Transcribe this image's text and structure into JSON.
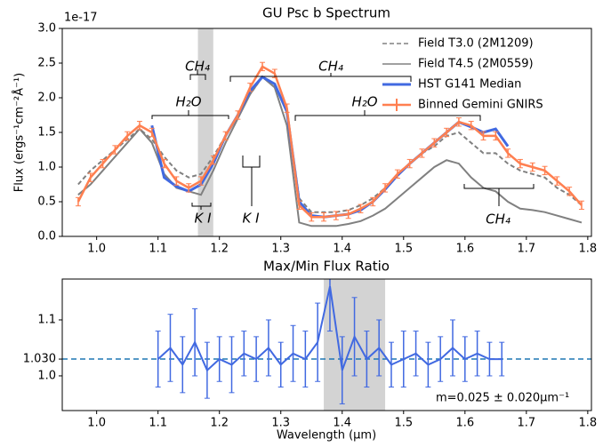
{
  "chart_data": [
    {
      "type": "line",
      "title": "GU Psc b Spectrum",
      "offset_label": "1e-17",
      "ylabel": "Flux (ergs⁻¹cm⁻²Å⁻¹)",
      "xlim": [
        0.944,
        1.806
      ],
      "ylim": [
        0,
        3
      ],
      "xticks": [
        {
          "value": 1,
          "label": "1.0"
        },
        1.1,
        1.2,
        1.3,
        1.4,
        1.5,
        1.6,
        1.7,
        {
          "value": 1.8,
          "label": "1.8"
        }
      ],
      "yticks": [
        {
          "value": 0,
          "label": "0.0"
        },
        0.5,
        {
          "value": 1,
          "label": "1.0"
        },
        1.5,
        {
          "value": 2,
          "label": "2.0"
        },
        2.5,
        {
          "value": 3,
          "label": "3.0"
        }
      ],
      "legend": "upper right",
      "spans": [
        [
          1.165,
          1.19
        ]
      ],
      "annotations": [
        "CH₄",
        "H₂O",
        "CH₄",
        "H₂O",
        "K I",
        "K I",
        "CH₄"
      ],
      "x": [
        0.97,
        0.99,
        1.01,
        1.03,
        1.05,
        1.07,
        1.09,
        1.11,
        1.13,
        1.15,
        1.17,
        1.19,
        1.21,
        1.23,
        1.25,
        1.27,
        1.29,
        1.31,
        1.33,
        1.35,
        1.37,
        1.39,
        1.41,
        1.43,
        1.45,
        1.47,
        1.49,
        1.51,
        1.53,
        1.55,
        1.57,
        1.59,
        1.61,
        1.63,
        1.65,
        1.67,
        1.69,
        1.71,
        1.73,
        1.75,
        1.77,
        1.79
      ],
      "series": [
        {
          "name": "Field T3.0 (2M1209)",
          "color": "#808080",
          "dash": true,
          "values": [
            0.75,
            0.95,
            1.1,
            1.25,
            1.4,
            1.55,
            1.4,
            1.15,
            0.95,
            0.85,
            0.9,
            1.15,
            1.45,
            1.75,
            2.05,
            2.3,
            2.2,
            1.8,
            0.55,
            0.35,
            0.35,
            0.35,
            0.38,
            0.45,
            0.55,
            0.7,
            0.9,
            1.05,
            1.2,
            1.3,
            1.45,
            1.5,
            1.35,
            1.2,
            1.2,
            1.05,
            0.95,
            0.9,
            0.85,
            0.7,
            0.6,
            0.45
          ]
        },
        {
          "name": "Field T4.5 (2M0559)",
          "color": "#808080",
          "values": [
            0.6,
            0.75,
            0.95,
            1.15,
            1.35,
            1.55,
            1.35,
            0.9,
            0.7,
            0.65,
            0.6,
            0.95,
            1.35,
            1.7,
            2.05,
            2.3,
            2.15,
            1.6,
            0.2,
            0.15,
            0.15,
            0.15,
            0.18,
            0.22,
            0.3,
            0.4,
            0.55,
            0.7,
            0.85,
            1.0,
            1.1,
            1.05,
            0.85,
            0.7,
            0.65,
            0.5,
            0.4,
            0.38,
            0.35,
            0.3,
            0.25,
            0.2
          ]
        },
        {
          "name": "HST G141 Median",
          "color": "#4169e1",
          "width": 3,
          "values": [
            null,
            null,
            null,
            null,
            null,
            null,
            1.6,
            0.85,
            0.72,
            0.65,
            0.75,
            1.05,
            1.45,
            1.75,
            2.1,
            2.3,
            2.2,
            1.8,
            0.5,
            0.3,
            0.28,
            0.3,
            0.32,
            0.38,
            0.5,
            0.68,
            0.88,
            1.05,
            1.2,
            1.35,
            1.5,
            1.65,
            1.58,
            1.5,
            1.55,
            1.3,
            null,
            null,
            null,
            null,
            null,
            null
          ]
        },
        {
          "name": "Binned Gemini GNIRS",
          "color": "#ff7f50",
          "width": 2.5,
          "values": [
            0.5,
            0.85,
            1.05,
            1.25,
            1.45,
            1.6,
            1.5,
            1.05,
            0.8,
            0.7,
            0.8,
            1.1,
            1.45,
            1.75,
            2.15,
            2.45,
            2.35,
            1.85,
            0.45,
            0.28,
            0.28,
            0.3,
            0.32,
            0.4,
            0.5,
            0.7,
            0.9,
            1.05,
            1.2,
            1.35,
            1.5,
            1.65,
            1.6,
            1.45,
            1.45,
            1.2,
            1.05,
            1.0,
            0.95,
            0.8,
            0.65,
            0.45
          ],
          "errors": [
            0.06,
            0.06,
            0.06,
            0.06,
            0.06,
            0.06,
            0.06,
            0.06,
            0.06,
            0.06,
            0.06,
            0.06,
            0.06,
            0.06,
            0.06,
            0.06,
            0.06,
            0.06,
            0.06,
            0.06,
            0.06,
            0.06,
            0.06,
            0.06,
            0.06,
            0.06,
            0.06,
            0.06,
            0.06,
            0.06,
            0.06,
            0.06,
            0.06,
            0.06,
            0.06,
            0.06,
            0.06,
            0.06,
            0.06,
            0.06,
            0.06,
            0.06
          ]
        }
      ]
    },
    {
      "type": "line",
      "title": "Max/Min Flux Ratio",
      "xlabel": "Wavelength (µm)",
      "xlim": [
        0.944,
        1.806
      ],
      "ylim": [
        0.938,
        1.173
      ],
      "xticks": [
        {
          "value": 1,
          "label": "1.0"
        },
        1.1,
        1.2,
        1.3,
        1.4,
        1.5,
        1.6,
        1.7,
        {
          "value": 1.8,
          "label": "1.8"
        }
      ],
      "yticks": [
        {
          "value": 1,
          "label": "1.0"
        },
        {
          "value": 1.03,
          "label": "1.030"
        },
        1.1
      ],
      "spans": [
        [
          1.37,
          1.47
        ]
      ],
      "fit": 1.03,
      "annotation": "m=0.025 ± 0.020μm⁻¹",
      "x": [
        1.1,
        1.12,
        1.14,
        1.16,
        1.18,
        1.2,
        1.22,
        1.24,
        1.26,
        1.28,
        1.3,
        1.32,
        1.34,
        1.36,
        1.38,
        1.4,
        1.42,
        1.44,
        1.46,
        1.48,
        1.5,
        1.52,
        1.54,
        1.56,
        1.58,
        1.6,
        1.62,
        1.64,
        1.66
      ],
      "series": [
        {
          "color": "#4169e1",
          "values": [
            1.03,
            1.05,
            1.02,
            1.06,
            1.01,
            1.03,
            1.02,
            1.04,
            1.03,
            1.05,
            1.02,
            1.04,
            1.03,
            1.06,
            1.16,
            1.01,
            1.07,
            1.03,
            1.05,
            1.02,
            1.03,
            1.04,
            1.02,
            1.03,
            1.05,
            1.03,
            1.04,
            1.03,
            1.03
          ],
          "errors": [
            0.05,
            0.06,
            0.05,
            0.06,
            0.05,
            0.04,
            0.05,
            0.04,
            0.04,
            0.05,
            0.04,
            0.05,
            0.05,
            0.07,
            0.08,
            0.06,
            0.07,
            0.05,
            0.05,
            0.04,
            0.05,
            0.04,
            0.04,
            0.04,
            0.05,
            0.04,
            0.04,
            0.03,
            0.03
          ]
        }
      ]
    }
  ]
}
